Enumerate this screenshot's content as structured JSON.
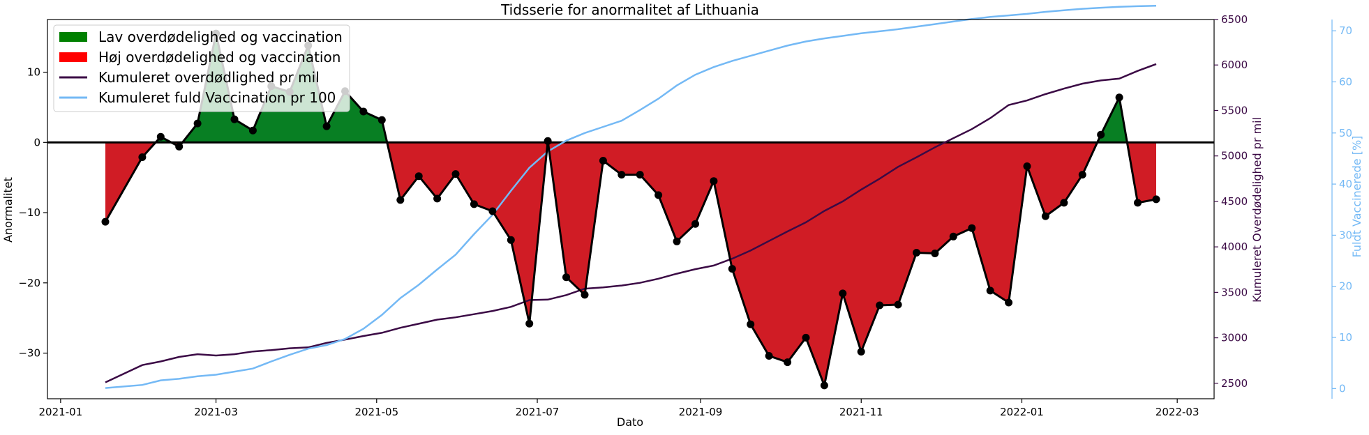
{
  "chart_data": {
    "type": "area",
    "title": "Tidsserie for anormalitet af Lithuania",
    "xlabel": "Dato",
    "ylabel_left": "Anormalitet",
    "ylabel_right": "Kumuleret Overdødelighed pr mil",
    "ylabel_right2": "Fuldt Vaccinerede [%]",
    "x_ticks": [
      "2021-01",
      "2021-03",
      "2021-05",
      "2021-07",
      "2021-09",
      "2021-11",
      "2022-01",
      "2022-03"
    ],
    "y_left_ticks": [
      10,
      0,
      -10,
      -20,
      -30
    ],
    "y_right_ticks": [
      6500,
      6000,
      5500,
      5000,
      4500,
      4000,
      3500,
      3000,
      2500
    ],
    "y_right2_ticks": [
      70,
      60,
      50,
      40,
      30,
      20,
      10,
      0
    ],
    "y_left_lim": [
      -36.5,
      17.5
    ],
    "y_right_lim": [
      2330,
      6500
    ],
    "y_right2_lim": [
      -2,
      72.2
    ],
    "x_lim": [
      "2020-12-27",
      "2022-03-15"
    ],
    "colors": {
      "low": "#087f23",
      "high": "#d01c25",
      "legend_low": "#008000",
      "legend_high": "#ff0000",
      "anomaly_line": "#000000",
      "cum_excess": "#3b0a45",
      "vaccination": "#74b9f5"
    },
    "legend": {
      "position": "top-left",
      "items": [
        {
          "label": "Lav overdødelighed og vaccination",
          "kind": "patch",
          "color": "#008000"
        },
        {
          "label": "Høj overdødelighed og vaccination",
          "kind": "patch",
          "color": "#ff0000"
        },
        {
          "label": "Kumuleret overdødlighed pr mil",
          "kind": "line",
          "color": "#3b0a45"
        },
        {
          "label": "Kumuleret fuld Vaccination pr 100",
          "kind": "line",
          "color": "#74b9f5"
        }
      ]
    },
    "series": [
      {
        "name": "Anormalitet",
        "points": [
          [
            "2021-01-18",
            -11.3
          ],
          [
            "2021-02-01",
            -2.1
          ],
          [
            "2021-02-08",
            0.8
          ],
          [
            "2021-02-15",
            -0.6
          ],
          [
            "2021-02-22",
            2.7
          ],
          [
            "2021-03-01",
            15.5
          ],
          [
            "2021-03-08",
            3.3
          ],
          [
            "2021-03-15",
            1.7
          ],
          [
            "2021-03-22",
            8.0
          ],
          [
            "2021-03-29",
            7.2
          ],
          [
            "2021-04-05",
            13.8
          ],
          [
            "2021-04-12",
            2.3
          ],
          [
            "2021-04-19",
            7.3
          ],
          [
            "2021-04-26",
            4.4
          ],
          [
            "2021-05-03",
            3.2
          ],
          [
            "2021-05-10",
            -8.2
          ],
          [
            "2021-05-17",
            -4.8
          ],
          [
            "2021-05-24",
            -8.0
          ],
          [
            "2021-05-31",
            -4.5
          ],
          [
            "2021-06-07",
            -8.8
          ],
          [
            "2021-06-14",
            -9.8
          ],
          [
            "2021-06-21",
            -13.9
          ],
          [
            "2021-06-28",
            -25.8
          ],
          [
            "2021-07-05",
            0.2
          ],
          [
            "2021-07-12",
            -19.2
          ],
          [
            "2021-07-19",
            -21.7
          ],
          [
            "2021-07-26",
            -2.6
          ],
          [
            "2021-08-02",
            -4.6
          ],
          [
            "2021-08-09",
            -4.6
          ],
          [
            "2021-08-16",
            -7.5
          ],
          [
            "2021-08-23",
            -14.1
          ],
          [
            "2021-08-30",
            -11.6
          ],
          [
            "2021-09-06",
            -5.5
          ],
          [
            "2021-09-13",
            -18.0
          ],
          [
            "2021-09-20",
            -25.9
          ],
          [
            "2021-09-27",
            -30.4
          ],
          [
            "2021-10-04",
            -31.3
          ],
          [
            "2021-10-11",
            -27.8
          ],
          [
            "2021-10-18",
            -34.6
          ],
          [
            "2021-10-25",
            -21.5
          ],
          [
            "2021-11-01",
            -29.8
          ],
          [
            "2021-11-08",
            -23.2
          ],
          [
            "2021-11-15",
            -23.1
          ],
          [
            "2021-11-22",
            -15.7
          ],
          [
            "2021-11-29",
            -15.8
          ],
          [
            "2021-12-06",
            -13.4
          ],
          [
            "2021-12-13",
            -12.2
          ],
          [
            "2021-12-20",
            -21.1
          ],
          [
            "2021-12-27",
            -22.8
          ],
          [
            "2022-01-03",
            -3.4
          ],
          [
            "2022-01-10",
            -10.5
          ],
          [
            "2022-01-17",
            -8.6
          ],
          [
            "2022-01-24",
            -4.6
          ],
          [
            "2022-01-31",
            1.1
          ],
          [
            "2022-02-07",
            6.4
          ],
          [
            "2022-02-14",
            -8.6
          ],
          [
            "2022-02-21",
            -8.1
          ]
        ]
      },
      {
        "name": "Kumuleret overdødlighed pr mil",
        "axis": "right",
        "points": [
          [
            "2021-01-18",
            2510
          ],
          [
            "2021-02-01",
            2700
          ],
          [
            "2021-02-08",
            2740
          ],
          [
            "2021-02-15",
            2790
          ],
          [
            "2021-02-22",
            2820
          ],
          [
            "2021-03-01",
            2805
          ],
          [
            "2021-03-08",
            2820
          ],
          [
            "2021-03-15",
            2850
          ],
          [
            "2021-03-22",
            2865
          ],
          [
            "2021-03-29",
            2885
          ],
          [
            "2021-04-05",
            2895
          ],
          [
            "2021-04-12",
            2945
          ],
          [
            "2021-04-19",
            2980
          ],
          [
            "2021-04-26",
            3020
          ],
          [
            "2021-05-03",
            3055
          ],
          [
            "2021-05-10",
            3110
          ],
          [
            "2021-05-17",
            3155
          ],
          [
            "2021-05-24",
            3200
          ],
          [
            "2021-05-31",
            3225
          ],
          [
            "2021-06-07",
            3260
          ],
          [
            "2021-06-14",
            3295
          ],
          [
            "2021-06-21",
            3340
          ],
          [
            "2021-06-28",
            3415
          ],
          [
            "2021-07-05",
            3420
          ],
          [
            "2021-07-12",
            3470
          ],
          [
            "2021-07-19",
            3540
          ],
          [
            "2021-07-26",
            3555
          ],
          [
            "2021-08-02",
            3575
          ],
          [
            "2021-08-09",
            3605
          ],
          [
            "2021-08-16",
            3650
          ],
          [
            "2021-08-23",
            3705
          ],
          [
            "2021-08-30",
            3755
          ],
          [
            "2021-09-06",
            3795
          ],
          [
            "2021-09-13",
            3870
          ],
          [
            "2021-09-20",
            3960
          ],
          [
            "2021-09-27",
            4065
          ],
          [
            "2021-10-04",
            4170
          ],
          [
            "2021-10-11",
            4270
          ],
          [
            "2021-10-18",
            4395
          ],
          [
            "2021-10-25",
            4500
          ],
          [
            "2021-11-01",
            4630
          ],
          [
            "2021-11-08",
            4750
          ],
          [
            "2021-11-15",
            4880
          ],
          [
            "2021-11-22",
            4985
          ],
          [
            "2021-11-29",
            5095
          ],
          [
            "2021-12-06",
            5195
          ],
          [
            "2021-12-13",
            5295
          ],
          [
            "2021-12-20",
            5415
          ],
          [
            "2021-12-27",
            5560
          ],
          [
            "2022-01-03",
            5610
          ],
          [
            "2022-01-10",
            5680
          ],
          [
            "2022-01-17",
            5740
          ],
          [
            "2022-01-24",
            5795
          ],
          [
            "2022-01-31",
            5830
          ],
          [
            "2022-02-07",
            5850
          ],
          [
            "2022-02-14",
            5935
          ],
          [
            "2022-02-21",
            6010
          ]
        ]
      },
      {
        "name": "Kumuleret fuld Vaccination pr 100",
        "axis": "right2",
        "points": [
          [
            "2021-01-18",
            0.1
          ],
          [
            "2021-02-01",
            0.7
          ],
          [
            "2021-02-08",
            1.6
          ],
          [
            "2021-02-15",
            1.9
          ],
          [
            "2021-02-22",
            2.4
          ],
          [
            "2021-03-01",
            2.7
          ],
          [
            "2021-03-08",
            3.3
          ],
          [
            "2021-03-15",
            3.9
          ],
          [
            "2021-03-22",
            5.3
          ],
          [
            "2021-03-29",
            6.6
          ],
          [
            "2021-04-05",
            7.8
          ],
          [
            "2021-04-12",
            8.5
          ],
          [
            "2021-04-19",
            9.7
          ],
          [
            "2021-04-26",
            11.7
          ],
          [
            "2021-05-03",
            14.4
          ],
          [
            "2021-05-10",
            17.7
          ],
          [
            "2021-05-17",
            20.3
          ],
          [
            "2021-05-24",
            23.3
          ],
          [
            "2021-05-31",
            26.2
          ],
          [
            "2021-06-07",
            30.2
          ],
          [
            "2021-06-14",
            34.0
          ],
          [
            "2021-06-21",
            38.7
          ],
          [
            "2021-06-28",
            43.2
          ],
          [
            "2021-07-05",
            46.4
          ],
          [
            "2021-07-12",
            48.5
          ],
          [
            "2021-07-19",
            50.0
          ],
          [
            "2021-07-26",
            51.2
          ],
          [
            "2021-08-02",
            52.4
          ],
          [
            "2021-08-09",
            54.5
          ],
          [
            "2021-08-16",
            56.7
          ],
          [
            "2021-08-23",
            59.3
          ],
          [
            "2021-08-30",
            61.4
          ],
          [
            "2021-09-06",
            62.9
          ],
          [
            "2021-09-13",
            64.1
          ],
          [
            "2021-09-20",
            65.1
          ],
          [
            "2021-09-27",
            66.1
          ],
          [
            "2021-10-04",
            67.1
          ],
          [
            "2021-10-11",
            67.9
          ],
          [
            "2021-10-18",
            68.5
          ],
          [
            "2021-10-25",
            69.0
          ],
          [
            "2021-11-01",
            69.5
          ],
          [
            "2021-11-08",
            69.9
          ],
          [
            "2021-11-15",
            70.3
          ],
          [
            "2021-11-22",
            70.8
          ],
          [
            "2021-11-29",
            71.3
          ],
          [
            "2021-12-06",
            71.8
          ],
          [
            "2021-12-13",
            72.3
          ],
          [
            "2021-12-20",
            72.7
          ],
          [
            "2021-12-27",
            73.0
          ],
          [
            "2022-01-03",
            73.3
          ],
          [
            "2022-01-10",
            73.7
          ],
          [
            "2022-01-17",
            74.0
          ],
          [
            "2022-01-24",
            74.3
          ],
          [
            "2022-01-31",
            74.5
          ],
          [
            "2022-02-07",
            74.7
          ],
          [
            "2022-02-14",
            74.8
          ],
          [
            "2022-02-21",
            74.9
          ]
        ]
      }
    ]
  }
}
